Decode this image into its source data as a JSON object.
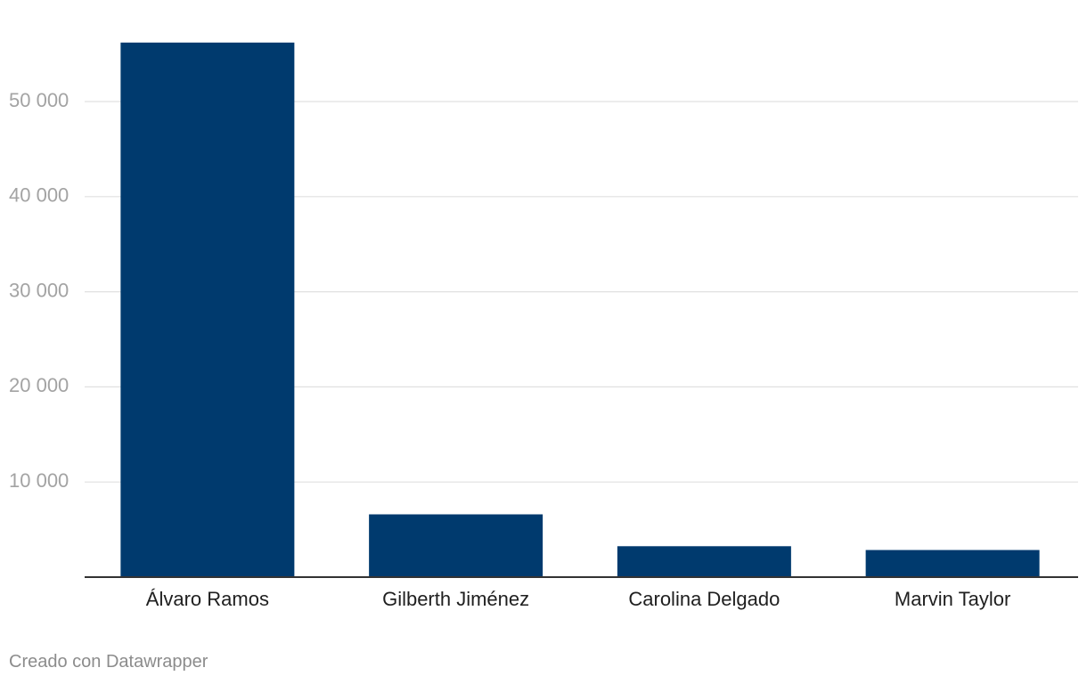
{
  "chart_data": {
    "type": "bar",
    "categories": [
      "Álvaro Ramos",
      "Gilberth Jiménez",
      "Carolina Delgado",
      "Marvin Taylor"
    ],
    "values": [
      56200,
      6600,
      3250,
      2850
    ],
    "y_tick_values": [
      10000,
      20000,
      30000,
      40000,
      50000
    ],
    "y_tick_labels": [
      "10 000",
      "20 000",
      "30 000",
      "40 000",
      "50 000"
    ],
    "ylim": [
      0,
      57000
    ],
    "grid": true,
    "bar_color": "#003a6e"
  },
  "footer": {
    "credit": "Creado con Datawrapper"
  }
}
